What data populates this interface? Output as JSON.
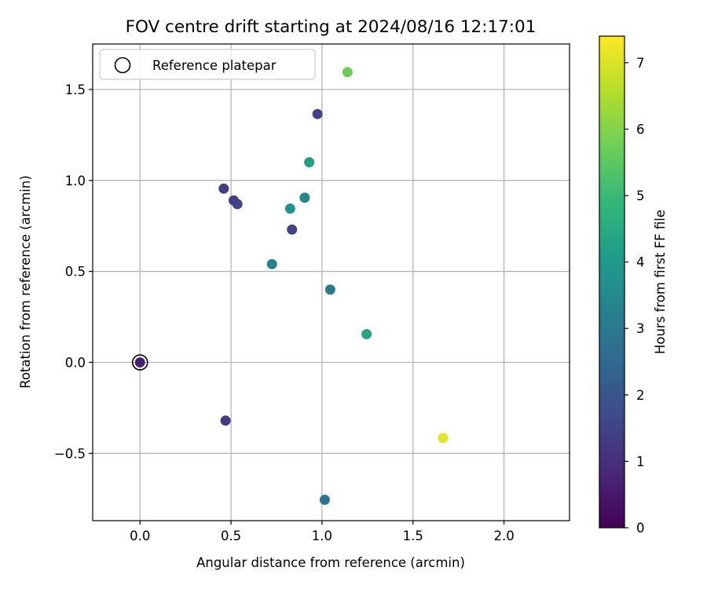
{
  "chart_data": {
    "type": "scatter",
    "title": "FOV centre drift starting at 2024/08/16 12:17:01",
    "xlabel": "Angular distance from reference (arcmin)",
    "ylabel": "Rotation from reference (arcmin)",
    "xlim": [
      -0.26,
      2.36
    ],
    "ylim": [
      -0.87,
      1.75
    ],
    "xticks": [
      0.0,
      0.5,
      1.0,
      1.5,
      2.0
    ],
    "xtick_labels": [
      "0.0",
      "0.5",
      "1.0",
      "1.5",
      "2.0"
    ],
    "yticks": [
      -0.5,
      0.0,
      0.5,
      1.0,
      1.5
    ],
    "ytick_labels": [
      "−0.5",
      "0.0",
      "0.5",
      "1.0",
      "1.5"
    ],
    "grid": true,
    "legend": {
      "placement": "top-left",
      "entries": [
        "Reference platepar"
      ]
    },
    "reference_point": {
      "x": 0.0,
      "y": 0.0
    },
    "points": [
      {
        "x": 0.0,
        "y": 0.0,
        "hours": 0.7
      },
      {
        "x": 0.47,
        "y": -0.32,
        "hours": 1.3
      },
      {
        "x": 0.46,
        "y": 0.955,
        "hours": 1.4
      },
      {
        "x": 0.515,
        "y": 0.89,
        "hours": 1.4
      },
      {
        "x": 0.535,
        "y": 0.87,
        "hours": 1.5
      },
      {
        "x": 0.835,
        "y": 0.73,
        "hours": 1.5
      },
      {
        "x": 0.975,
        "y": 1.365,
        "hours": 1.5
      },
      {
        "x": 1.015,
        "y": -0.755,
        "hours": 2.9
      },
      {
        "x": 1.045,
        "y": 0.4,
        "hours": 3.1
      },
      {
        "x": 0.725,
        "y": 0.54,
        "hours": 3.3
      },
      {
        "x": 0.825,
        "y": 0.845,
        "hours": 3.8
      },
      {
        "x": 0.905,
        "y": 0.905,
        "hours": 3.4
      },
      {
        "x": 0.93,
        "y": 1.1,
        "hours": 4.2
      },
      {
        "x": 1.245,
        "y": 0.155,
        "hours": 4.3
      },
      {
        "x": 1.14,
        "y": 1.595,
        "hours": 5.7
      },
      {
        "x": 1.665,
        "y": -0.415,
        "hours": 7.1
      }
    ],
    "colorbar": {
      "label": "Hours from first FF file",
      "colormap": "viridis",
      "range": [
        0,
        7.4
      ],
      "ticks": [
        0,
        1,
        2,
        3,
        4,
        5,
        6,
        7
      ],
      "tick_labels": [
        "0",
        "1",
        "2",
        "3",
        "4",
        "5",
        "6",
        "7"
      ]
    },
    "colors": {
      "grid": "#b0b0b0",
      "reference_marker_edge": "#000000"
    }
  }
}
